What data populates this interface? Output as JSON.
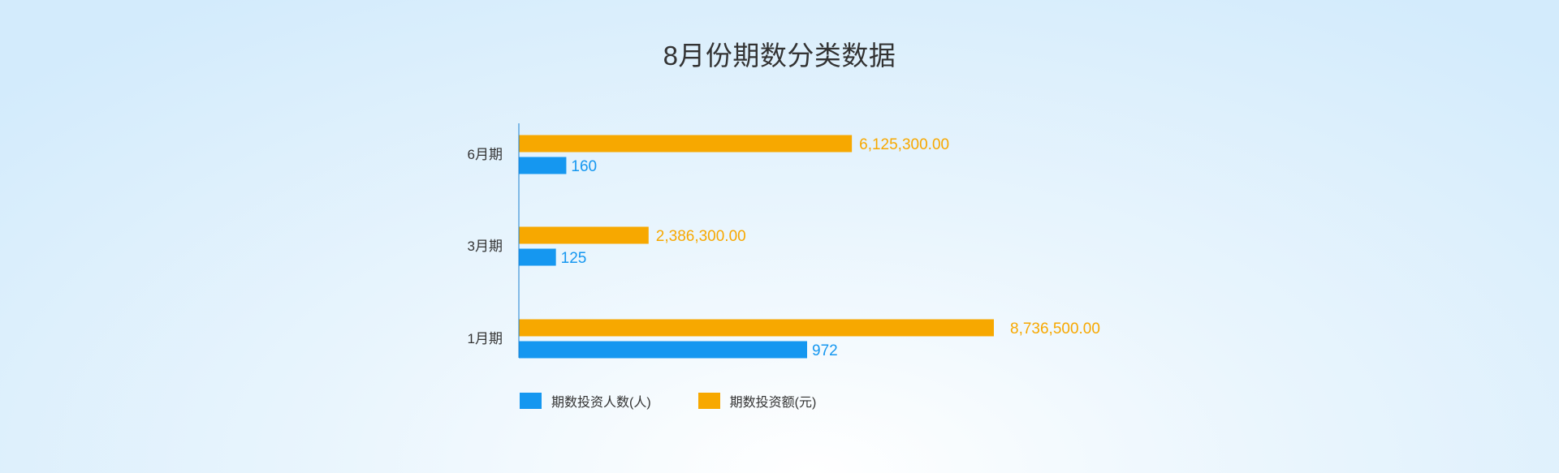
{
  "title": "8月份期数分类数据",
  "colors": {
    "series_a": "#1597f0",
    "series_b": "#f7a800",
    "axis": "#1b7fd0"
  },
  "chart_data": {
    "type": "bar",
    "orientation": "horizontal",
    "title": "8月份期数分类数据",
    "categories": [
      "6月期",
      "3月期",
      "1月期"
    ],
    "series": [
      {
        "name": "期数投资人数(人)",
        "values": [
          160,
          125,
          972
        ],
        "labels": [
          "160",
          "125",
          "972"
        ]
      },
      {
        "name": "期数投资额(元)",
        "values": [
          6125300.0,
          2386300.0,
          8736500.0
        ],
        "labels": [
          "6,125,300.00",
          "2,386,300.00",
          "8,736,500.00"
        ]
      }
    ],
    "grid": false,
    "legend_position": "bottom-left"
  }
}
